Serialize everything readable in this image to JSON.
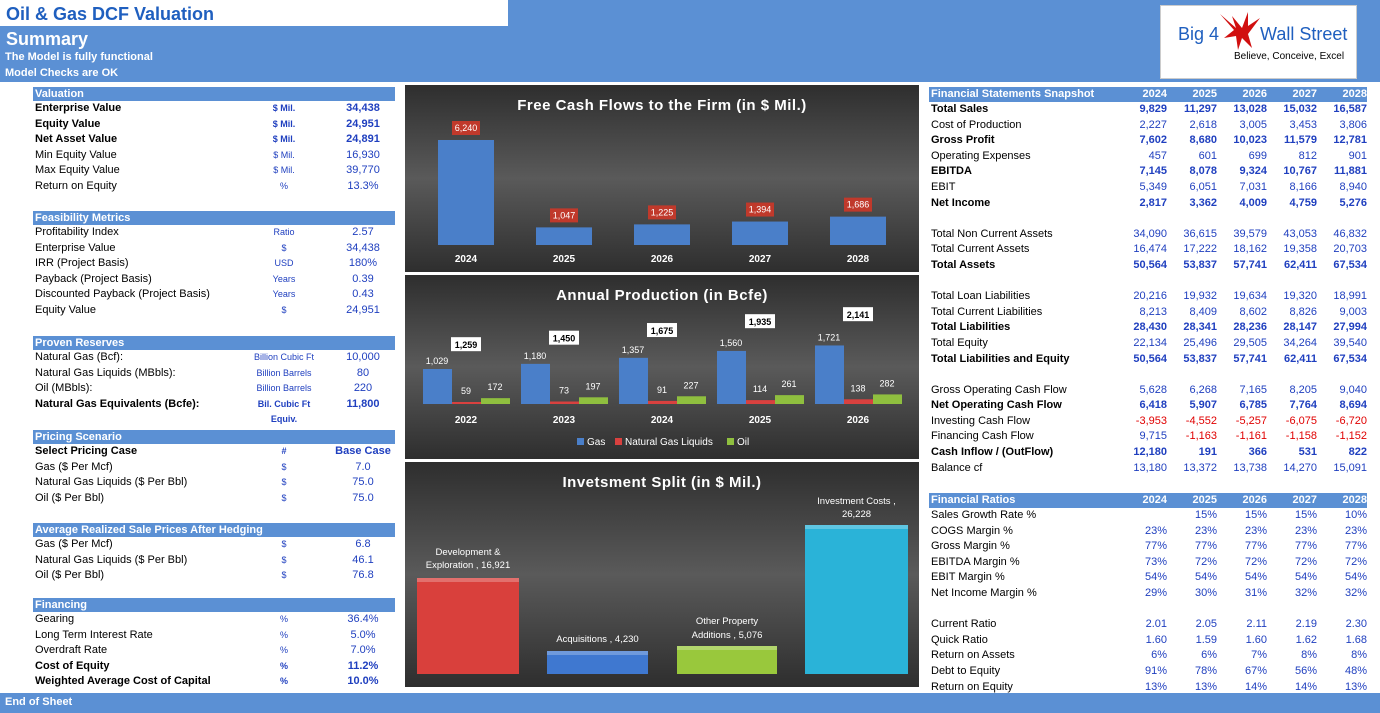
{
  "title": "Oil & Gas DCF Valuation",
  "summary": "Summary",
  "status1": "The Model is fully functional",
  "status2": "Model Checks are OK",
  "footer": "End of Sheet",
  "logo": {
    "big4": "Big 4",
    "wallstreet": "Wall Street",
    "tagline": "Believe, Conceive, Excel"
  },
  "sections": [
    {
      "title": "Valuation",
      "rows": [
        {
          "label": "Enterprise Value",
          "unit": "$ Mil.",
          "value": "34,438",
          "bold": true
        },
        {
          "label": "Equity Value",
          "unit": "$ Mil.",
          "value": "24,951",
          "bold": true
        },
        {
          "label": "Net Asset Value",
          "unit": "$ Mil.",
          "value": "24,891",
          "bold": true
        },
        {
          "label": "Min Equity Value",
          "unit": "$ Mil.",
          "value": "16,930"
        },
        {
          "label": "Max Equity Value",
          "unit": "$ Mil.",
          "value": "39,770"
        },
        {
          "label": "Return on Equity",
          "unit": "%",
          "value": "13.3%"
        }
      ]
    },
    {
      "title": "Feasibility Metrics",
      "rows": [
        {
          "label": "Profitability Index",
          "unit": "Ratio",
          "value": "2.57"
        },
        {
          "label": "Enterprise Value",
          "unit": "$",
          "value": "34,438"
        },
        {
          "label": "IRR (Project Basis)",
          "unit": "USD",
          "value": "180%"
        },
        {
          "label": "Payback  (Project Basis)",
          "unit": "Years",
          "value": "0.39"
        },
        {
          "label": "Discounted Payback  (Project Basis)",
          "unit": "Years",
          "value": "0.43"
        },
        {
          "label": "Equity Value",
          "unit": "$",
          "value": "24,951"
        }
      ]
    },
    {
      "title": "Proven Reserves",
      "rows": [
        {
          "label": "Natural Gas (Bcf):",
          "unit": "Billion Cubic Ft",
          "value": "10,000"
        },
        {
          "label": "Natural Gas Liquids (MBbls):",
          "unit": "Billion Barrels",
          "value": "80"
        },
        {
          "label": "Oil (MBbls):",
          "unit": "Billion Barrels",
          "value": "220"
        },
        {
          "label": "Natural Gas Equivalents (Bcfe):",
          "unit": "Bil. Cubic Ft Equiv.",
          "value": "11,800",
          "bold": true
        }
      ]
    },
    {
      "title": "Pricing Scenario",
      "rows": [
        {
          "label": "Select Pricing Case",
          "unit": "#",
          "value": "Base Case",
          "bold": true
        },
        {
          "label": "Gas ($ Per Mcf)",
          "unit": "$",
          "value": "7.0"
        },
        {
          "label": "Natural Gas Liquids ($ Per Bbl)",
          "unit": "$",
          "value": "75.0"
        },
        {
          "label": "Oil ($ Per Bbl)",
          "unit": "$",
          "value": "75.0"
        }
      ]
    },
    {
      "title": "Average Realized Sale Prices After Hedging",
      "rows": [
        {
          "label": "Gas ($ Per Mcf)",
          "unit": "$",
          "value": "6.8"
        },
        {
          "label": "Natural Gas Liquids ($ Per Bbl)",
          "unit": "$",
          "value": "46.1"
        },
        {
          "label": "Oil ($ Per Bbl)",
          "unit": "$",
          "value": "76.8"
        }
      ]
    },
    {
      "title": "Financing",
      "rows": [
        {
          "label": "Gearing",
          "unit": "%",
          "value": "36.4%"
        },
        {
          "label": "Long Term Interest Rate",
          "unit": "%",
          "value": "5.0%"
        },
        {
          "label": "Overdraft Rate",
          "unit": "%",
          "value": "7.0%"
        },
        {
          "label": "Cost of Equity",
          "unit": "%",
          "value": "11.2%",
          "bold": true
        },
        {
          "label": "Weighted Average Cost of Capital",
          "unit": "%",
          "value": "10.0%",
          "bold": true
        }
      ]
    }
  ],
  "fs": {
    "header": "Financial Statements Snapshot",
    "years": [
      "2024",
      "2025",
      "2026",
      "2027",
      "2028"
    ],
    "groups": [
      [
        {
          "label": "Total Sales",
          "v": [
            "9,829",
            "11,297",
            "13,028",
            "15,032",
            "16,587"
          ],
          "bold": true
        },
        {
          "label": "Cost of Production",
          "v": [
            "2,227",
            "2,618",
            "3,005",
            "3,453",
            "3,806"
          ]
        },
        {
          "label": "Gross Profit",
          "v": [
            "7,602",
            "8,680",
            "10,023",
            "11,579",
            "12,781"
          ],
          "bold": true
        },
        {
          "label": "Operating Expenses",
          "v": [
            "457",
            "601",
            "699",
            "812",
            "901"
          ]
        },
        {
          "label": "EBITDA",
          "v": [
            "7,145",
            "8,078",
            "9,324",
            "10,767",
            "11,881"
          ],
          "bold": true
        },
        {
          "label": "EBIT",
          "v": [
            "5,349",
            "6,051",
            "7,031",
            "8,166",
            "8,940"
          ]
        },
        {
          "label": "Net Income",
          "v": [
            "2,817",
            "3,362",
            "4,009",
            "4,759",
            "5,276"
          ],
          "bold": true
        }
      ],
      [
        {
          "label": "Total Non Current Assets",
          "v": [
            "34,090",
            "36,615",
            "39,579",
            "43,053",
            "46,832"
          ]
        },
        {
          "label": "Total Current Assets",
          "v": [
            "16,474",
            "17,222",
            "18,162",
            "19,358",
            "20,703"
          ]
        },
        {
          "label": "Total Assets",
          "v": [
            "50,564",
            "53,837",
            "57,741",
            "62,411",
            "67,534"
          ],
          "bold": true
        }
      ],
      [
        {
          "label": "Total Loan Liabilities",
          "v": [
            "20,216",
            "19,932",
            "19,634",
            "19,320",
            "18,991"
          ]
        },
        {
          "label": "Total Current Liabilities",
          "v": [
            "8,213",
            "8,409",
            "8,602",
            "8,826",
            "9,003"
          ]
        },
        {
          "label": "Total Liabilities",
          "v": [
            "28,430",
            "28,341",
            "28,236",
            "28,147",
            "27,994"
          ],
          "bold": true
        },
        {
          "label": "Total Equity",
          "v": [
            "22,134",
            "25,496",
            "29,505",
            "34,264",
            "39,540"
          ]
        },
        {
          "label": "Total Liabilities and Equity",
          "v": [
            "50,564",
            "53,837",
            "57,741",
            "62,411",
            "67,534"
          ],
          "bold": true
        }
      ],
      [
        {
          "label": "Gross Operating Cash Flow",
          "v": [
            "5,628",
            "6,268",
            "7,165",
            "8,205",
            "9,040"
          ]
        },
        {
          "label": "Net Operating Cash Flow",
          "v": [
            "6,418",
            "5,907",
            "6,785",
            "7,764",
            "8,694"
          ],
          "bold": true
        },
        {
          "label": "Investing Cash Flow",
          "v": [
            "-3,953",
            "-4,552",
            "-5,257",
            "-6,075",
            "-6,720"
          ],
          "neg": true
        },
        {
          "label": "Financing Cash Flow",
          "v": [
            "9,715",
            "-1,163",
            "-1,161",
            "-1,158",
            "-1,152"
          ],
          "neg": true
        },
        {
          "label": "Cash Inflow / (OutFlow)",
          "v": [
            "12,180",
            "191",
            "366",
            "531",
            "822"
          ],
          "bold": true
        },
        {
          "label": "Balance cf",
          "v": [
            "13,180",
            "13,372",
            "13,738",
            "14,270",
            "15,091"
          ]
        }
      ]
    ]
  },
  "ratios": {
    "header": "Financial Ratios",
    "years": [
      "2024",
      "2025",
      "2026",
      "2027",
      "2028"
    ],
    "groups": [
      [
        {
          "label": "Sales Growth Rate %",
          "v": [
            "",
            "15%",
            "15%",
            "15%",
            "10%"
          ]
        },
        {
          "label": "COGS Margin %",
          "v": [
            "23%",
            "23%",
            "23%",
            "23%",
            "23%"
          ]
        },
        {
          "label": "Gross Margin %",
          "v": [
            "77%",
            "77%",
            "77%",
            "77%",
            "77%"
          ]
        },
        {
          "label": "EBITDA Margin %",
          "v": [
            "73%",
            "72%",
            "72%",
            "72%",
            "72%"
          ]
        },
        {
          "label": "EBIT Margin %",
          "v": [
            "54%",
            "54%",
            "54%",
            "54%",
            "54%"
          ]
        },
        {
          "label": "Net Income Margin %",
          "v": [
            "29%",
            "30%",
            "31%",
            "32%",
            "32%"
          ]
        }
      ],
      [
        {
          "label": "Current Ratio",
          "v": [
            "2.01",
            "2.05",
            "2.11",
            "2.19",
            "2.30"
          ]
        },
        {
          "label": "Quick Ratio",
          "v": [
            "1.60",
            "1.59",
            "1.60",
            "1.62",
            "1.68"
          ]
        },
        {
          "label": "Return on Assets",
          "v": [
            "6%",
            "6%",
            "7%",
            "8%",
            "8%"
          ]
        },
        {
          "label": "Debt to Equity",
          "v": [
            "91%",
            "78%",
            "67%",
            "56%",
            "48%"
          ]
        },
        {
          "label": "Return on Equity",
          "v": [
            "13%",
            "13%",
            "14%",
            "14%",
            "13%"
          ]
        }
      ]
    ]
  },
  "chart_data": [
    {
      "type": "bar",
      "title": "Free Cash Flows to the Firm (in $ Mil.)",
      "categories": [
        "2024",
        "2025",
        "2026",
        "2027",
        "2028"
      ],
      "values": [
        6240,
        1047,
        1225,
        1394,
        1686
      ],
      "labels": [
        "6,240",
        "1,047",
        "1,225",
        "1,394",
        "1,686"
      ],
      "color": "#4a7fc9"
    },
    {
      "type": "bar",
      "title": "Annual Production (in Bcfe)",
      "categories": [
        "2022",
        "2023",
        "2024",
        "2025",
        "2026"
      ],
      "series": [
        {
          "name": "Gas",
          "color": "#4a7fc9",
          "values": [
            1029,
            1180,
            1357,
            1560,
            1721
          ],
          "labels": [
            "1,029",
            "1,180",
            "1,357",
            "1,560",
            "1,721"
          ]
        },
        {
          "name": "Natural Gas Liquids",
          "color": "#d9413f",
          "values": [
            59,
            73,
            91,
            114,
            138
          ],
          "labels": [
            "59",
            "73",
            "91",
            "114",
            "138"
          ]
        },
        {
          "name": "Oil",
          "color": "#8fbf3f",
          "values": [
            172,
            197,
            227,
            261,
            282
          ],
          "labels": [
            "172",
            "197",
            "227",
            "261",
            "282"
          ]
        }
      ],
      "totals": [
        "1,259",
        "1,450",
        "1,675",
        "1,935",
        "2,141"
      ],
      "total_values": [
        1259,
        1450,
        1675,
        1935,
        2141
      ]
    },
    {
      "type": "bar",
      "title": "Invetsment Split (in $ Mil.)",
      "categories": [
        "Development & Exploration",
        "Acquisitions",
        "Other Property Additions",
        "Investment Costs"
      ],
      "values": [
        16921,
        4230,
        5076,
        26228
      ],
      "labels": [
        [
          "Development &",
          "Exploration , 16,921"
        ],
        [
          "Acquisitions , 4,230"
        ],
        [
          "Other Property",
          "Additions , 5,076"
        ],
        [
          "Investment Costs ,",
          "26,228"
        ]
      ],
      "colors": [
        "#d9403c",
        "#3f78d0",
        "#99c83c",
        "#2ab3d8"
      ]
    }
  ]
}
